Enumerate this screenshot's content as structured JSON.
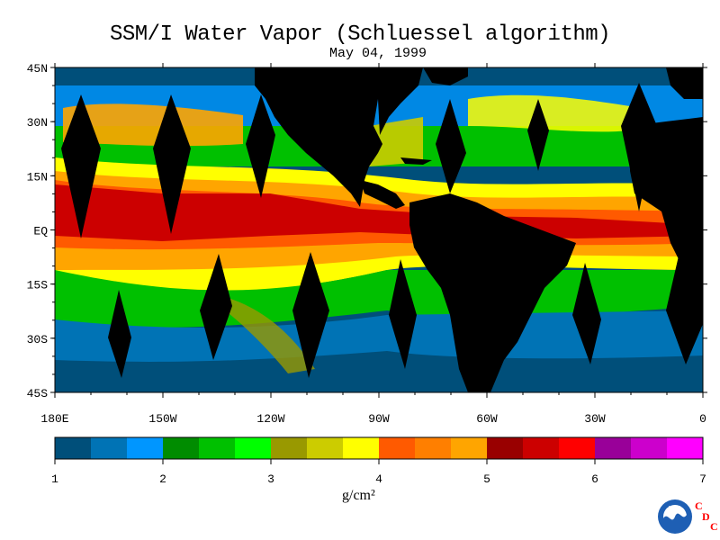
{
  "title": "SSM/I Water Vapor (Schluessel algorithm)",
  "subtitle": "May 04, 1999",
  "lat_labels": [
    {
      "text": "45N",
      "lat": 45
    },
    {
      "text": "30N",
      "lat": 30
    },
    {
      "text": "15N",
      "lat": 15
    },
    {
      "text": "EQ",
      "lat": 0
    },
    {
      "text": "15S",
      "lat": -15
    },
    {
      "text": "30S",
      "lat": -30
    },
    {
      "text": "45S",
      "lat": -45
    }
  ],
  "lon_labels": [
    {
      "text": "180E",
      "lon": -180
    },
    {
      "text": "150W",
      "lon": -150
    },
    {
      "text": "120W",
      "lon": -120
    },
    {
      "text": "90W",
      "lon": -90
    },
    {
      "text": "60W",
      "lon": -60
    },
    {
      "text": "30W",
      "lon": -30
    },
    {
      "text": "0",
      "lon": 0
    }
  ],
  "colorbar": {
    "colors": [
      "#004f7a",
      "#0073b5",
      "#0096ff",
      "#008c00",
      "#00c000",
      "#00ff00",
      "#999900",
      "#cccc00",
      "#ffff00",
      "#ff5a00",
      "#ff7f00",
      "#ffa500",
      "#990000",
      "#cc0000",
      "#ff0000",
      "#990099",
      "#cc00cc",
      "#ff00ff"
    ],
    "tick_labels": [
      "1",
      "2",
      "3",
      "4",
      "5",
      "6",
      "7"
    ],
    "units": "g/cm²"
  },
  "logo": {
    "noaa_text": "NOAA",
    "cdc_letters": [
      "C",
      "D",
      "C"
    ],
    "cdc_color": "#ff0000"
  }
}
